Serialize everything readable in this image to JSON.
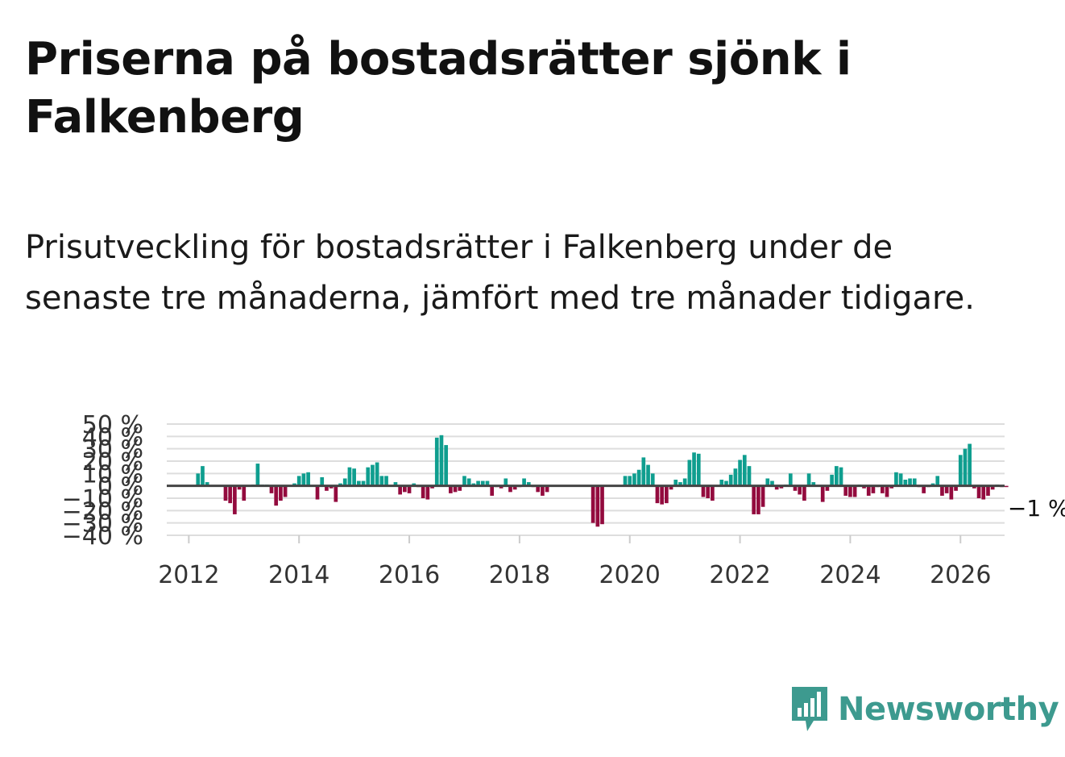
{
  "title": "Priserna på bostadsrätter sjönk i Falkenberg",
  "subtitle": "Prisutveckling för bostadsrätter i Falkenberg under de senaste tre månaderna, jämfört med tre månader tidigare.",
  "brand": {
    "name": "Newsworthy",
    "color": "#3d9a8f"
  },
  "colors": {
    "positive": "#0f9e8f",
    "negative": "#930b3e",
    "zero_line": "#444444",
    "grid": "#dddddd"
  },
  "chart_data": {
    "type": "bar",
    "title": "Priserna på bostadsrätter sjönk i Falkenberg",
    "xlabel": "",
    "ylabel": "",
    "ylim": [
      -40,
      50
    ],
    "y_ticks": [
      {
        "value": 50,
        "label": "50 %"
      },
      {
        "value": 40,
        "label": "40 %"
      },
      {
        "value": 30,
        "label": "30 %"
      },
      {
        "value": 20,
        "label": "20 %"
      },
      {
        "value": 10,
        "label": "10 %"
      },
      {
        "value": 0,
        "label": "0 %"
      },
      {
        "value": -10,
        "label": "−10 %"
      },
      {
        "value": -20,
        "label": "−20 %"
      },
      {
        "value": -30,
        "label": "−30 %"
      },
      {
        "value": -40,
        "label": "−40 %"
      }
    ],
    "x_ticks": [
      {
        "value": 2012,
        "label": "2012"
      },
      {
        "value": 2014,
        "label": "2014"
      },
      {
        "value": 2016,
        "label": "2016"
      },
      {
        "value": 2018,
        "label": "2018"
      },
      {
        "value": 2020,
        "label": "2020"
      },
      {
        "value": 2022,
        "label": "2022"
      },
      {
        "value": 2024,
        "label": "2024"
      },
      {
        "value": 2026,
        "label": "2026"
      }
    ],
    "xlim": [
      2011.6,
      2026.8
    ],
    "start": 2012.0,
    "step_months": 1,
    "end_label": "−1 %",
    "values": [
      0,
      0,
      10,
      16,
      3,
      0,
      0,
      0,
      -12,
      -14,
      -23,
      -3,
      -12,
      0,
      1,
      18,
      1,
      1,
      -6,
      -16,
      -12,
      -9,
      0,
      2,
      8,
      10,
      11,
      0,
      -11,
      7,
      -4,
      -2,
      -13,
      2,
      6,
      15,
      14,
      4,
      4,
      15,
      17,
      19,
      8,
      8,
      0,
      3,
      -7,
      -5,
      -6,
      2,
      -1,
      -10,
      -11,
      -2,
      39,
      41,
      33,
      -6,
      -5,
      -4,
      8,
      6,
      2,
      4,
      4,
      4,
      -8,
      -1,
      -2,
      6,
      -5,
      -3,
      -1,
      6,
      3,
      -1,
      -5,
      -8,
      -5,
      0,
      0,
      0,
      0,
      0,
      0,
      0,
      0,
      0,
      -30,
      -33,
      -31,
      0,
      0,
      0,
      0,
      8,
      8,
      10,
      13,
      23,
      17,
      10,
      -14,
      -15,
      -14,
      -3,
      5,
      3,
      6,
      21,
      27,
      26,
      -9,
      -10,
      -12,
      0,
      5,
      4,
      9,
      14,
      21,
      25,
      16,
      -23,
      -23,
      -17,
      6,
      4,
      -3,
      -2,
      1,
      10,
      -4,
      -7,
      -12,
      10,
      3,
      0,
      -13,
      -4,
      9,
      16,
      15,
      -8,
      -9,
      -9,
      1,
      -2,
      -8,
      -6,
      -1,
      -6,
      -9,
      -2,
      11,
      10,
      5,
      6,
      6,
      -1,
      -6,
      -1,
      2,
      8,
      -8,
      -6,
      -11,
      -4,
      25,
      30,
      34,
      -2,
      -10,
      -11,
      -8,
      -3,
      1,
      -1,
      -1
    ]
  }
}
